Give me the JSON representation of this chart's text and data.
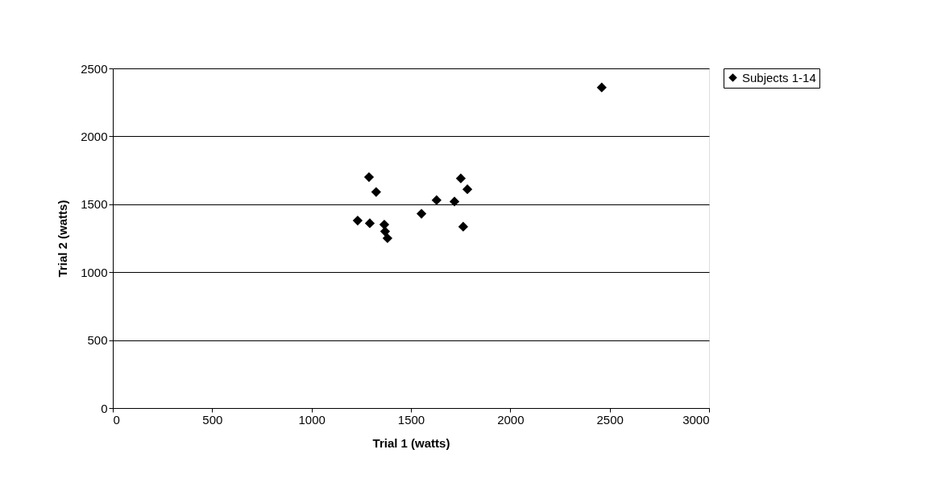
{
  "chart_data": {
    "type": "scatter",
    "xlabel": "Trial 1 (watts)",
    "ylabel": "Trial 2 (watts)",
    "x": [
      1289,
      1325,
      1751,
      1784,
      1629,
      1719,
      1553,
      1232,
      1293,
      1366,
      1370,
      1382,
      1763,
      2460
    ],
    "series": [
      {
        "name": "Subjects 1-14",
        "color": "#000000",
        "values": [
          1700,
          1590,
          1690,
          1610,
          1530,
          1520,
          1430,
          1380,
          1360,
          1350,
          1300,
          1250,
          1335,
          2360
        ]
      }
    ],
    "xlim": [
      0,
      3000
    ],
    "xticks": [
      0,
      500,
      1000,
      1500,
      2000,
      2500,
      3000
    ],
    "ylim": [
      0,
      2500
    ],
    "yticks": [
      0,
      500,
      1000,
      1500,
      2000,
      2500
    ],
    "grid": "y",
    "legend": "right",
    "marker": "diamond"
  }
}
